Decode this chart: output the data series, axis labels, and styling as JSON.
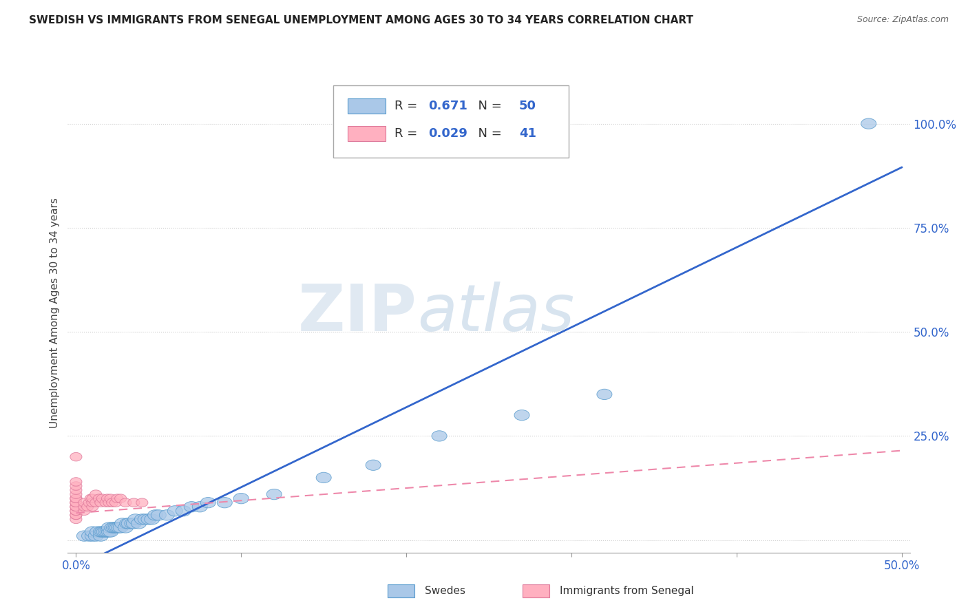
{
  "title": "SWEDISH VS IMMIGRANTS FROM SENEGAL UNEMPLOYMENT AMONG AGES 30 TO 34 YEARS CORRELATION CHART",
  "source": "Source: ZipAtlas.com",
  "ylabel": "Unemployment Among Ages 30 to 34 years",
  "yticks": [
    0.0,
    0.25,
    0.5,
    0.75,
    1.0
  ],
  "ytick_labels": [
    "",
    "25.0%",
    "50.0%",
    "75.0%",
    "100.0%"
  ],
  "xlim": [
    -0.005,
    0.505
  ],
  "ylim": [
    -0.03,
    1.12
  ],
  "blue_color": "#aac8e8",
  "blue_edge_color": "#5599cc",
  "pink_color": "#ffb0c0",
  "pink_edge_color": "#dd7799",
  "blue_line_color": "#3366cc",
  "pink_line_color": "#ee88aa",
  "legend_r_blue": "0.671",
  "legend_n_blue": "50",
  "legend_r_pink": "0.029",
  "legend_n_pink": "41",
  "legend_label_blue": "Swedes",
  "legend_label_pink": "Immigrants from Senegal",
  "watermark_zip": "ZIP",
  "watermark_atlas": "atlas",
  "blue_line_slope": 1.92,
  "blue_line_intercept": -0.065,
  "pink_line_slope": 0.3,
  "pink_line_intercept": 0.065,
  "swedes_x": [
    0.005,
    0.008,
    0.01,
    0.01,
    0.012,
    0.013,
    0.015,
    0.015,
    0.016,
    0.017,
    0.018,
    0.019,
    0.02,
    0.02,
    0.021,
    0.022,
    0.023,
    0.024,
    0.025,
    0.026,
    0.027,
    0.028,
    0.03,
    0.031,
    0.032,
    0.034,
    0.035,
    0.036,
    0.038,
    0.04,
    0.042,
    0.044,
    0.046,
    0.048,
    0.05,
    0.055,
    0.06,
    0.065,
    0.07,
    0.075,
    0.08,
    0.09,
    0.1,
    0.12,
    0.15,
    0.18,
    0.22,
    0.27,
    0.32,
    0.48
  ],
  "swedes_y": [
    0.01,
    0.01,
    0.01,
    0.02,
    0.01,
    0.02,
    0.01,
    0.02,
    0.02,
    0.02,
    0.02,
    0.02,
    0.02,
    0.03,
    0.02,
    0.03,
    0.03,
    0.03,
    0.03,
    0.03,
    0.03,
    0.04,
    0.03,
    0.04,
    0.04,
    0.04,
    0.04,
    0.05,
    0.04,
    0.05,
    0.05,
    0.05,
    0.05,
    0.06,
    0.06,
    0.06,
    0.07,
    0.07,
    0.08,
    0.08,
    0.09,
    0.09,
    0.1,
    0.11,
    0.15,
    0.18,
    0.25,
    0.3,
    0.35,
    1.0
  ],
  "senegal_x": [
    0.0,
    0.0,
    0.0,
    0.0,
    0.0,
    0.0,
    0.0,
    0.0,
    0.0,
    0.0,
    0.0,
    0.0,
    0.0,
    0.0,
    0.0,
    0.0,
    0.005,
    0.005,
    0.005,
    0.007,
    0.008,
    0.009,
    0.01,
    0.01,
    0.01,
    0.012,
    0.012,
    0.014,
    0.015,
    0.016,
    0.018,
    0.019,
    0.02,
    0.021,
    0.022,
    0.024,
    0.025,
    0.027,
    0.03,
    0.035,
    0.04
  ],
  "senegal_y": [
    0.05,
    0.06,
    0.06,
    0.07,
    0.07,
    0.08,
    0.08,
    0.09,
    0.09,
    0.1,
    0.1,
    0.11,
    0.12,
    0.13,
    0.14,
    0.2,
    0.07,
    0.08,
    0.09,
    0.08,
    0.09,
    0.1,
    0.08,
    0.09,
    0.1,
    0.09,
    0.11,
    0.1,
    0.09,
    0.1,
    0.09,
    0.1,
    0.09,
    0.1,
    0.09,
    0.09,
    0.1,
    0.1,
    0.09,
    0.09,
    0.09
  ]
}
